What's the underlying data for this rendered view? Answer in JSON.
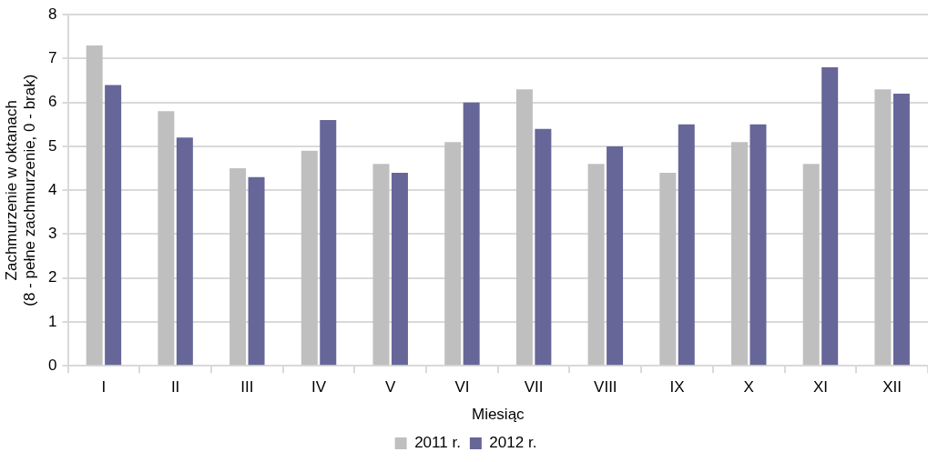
{
  "chart_data": {
    "type": "bar",
    "categories": [
      "I",
      "II",
      "III",
      "IV",
      "V",
      "VI",
      "VII",
      "VIII",
      "IX",
      "X",
      "XI",
      "XII"
    ],
    "series": [
      {
        "name": "2011 r.",
        "color": "#bfbfbf",
        "values": [
          7.3,
          5.8,
          4.5,
          4.9,
          4.6,
          5.1,
          6.3,
          4.6,
          4.4,
          5.1,
          4.6,
          6.3
        ]
      },
      {
        "name": "2012 r.",
        "color": "#666699",
        "values": [
          6.4,
          5.2,
          4.3,
          5.6,
          4.4,
          6.0,
          5.4,
          5.0,
          5.5,
          5.5,
          6.8,
          6.2
        ]
      }
    ],
    "xlabel": "Miesiąc",
    "ylabel": "Zachmurzenie w oktanach\n(8 - pełne zachmurzenie, 0 - brak)",
    "ylim": [
      0,
      8
    ],
    "yticks": [
      0,
      1,
      2,
      3,
      4,
      5,
      6,
      7,
      8
    ],
    "grid": "y",
    "legend": "bottom"
  }
}
